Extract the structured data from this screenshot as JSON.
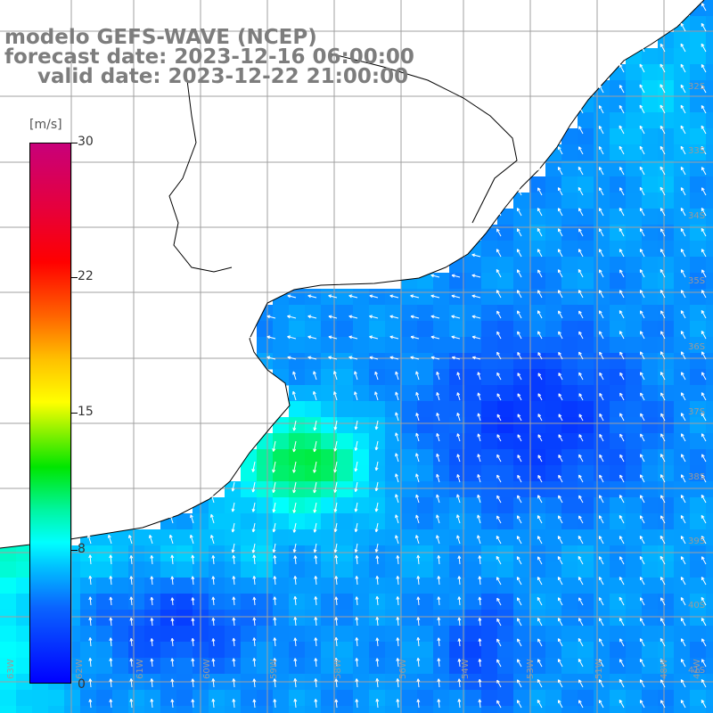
{
  "title": {
    "model": "modelo GEFS-WAVE (NCEP)",
    "forecast": "forecast date: 2023-12-16 06:00:00",
    "valid": "valid date: 2023-12-22 21:00:00"
  },
  "colorbar": {
    "unit": "[m/s]",
    "ticks": [
      "30",
      "22",
      "15",
      "8",
      "0"
    ],
    "tick_values": [
      30,
      22,
      15,
      8,
      0
    ],
    "range": [
      0,
      30
    ],
    "colors": [
      "#0000ff",
      "#00c8ff",
      "#00ffff",
      "#00e600",
      "#ffff00",
      "#ff6400",
      "#ff0000",
      "#c8007a"
    ]
  },
  "map": {
    "type": "wind speed and direction field",
    "ocean_color": "#1e78f0",
    "land_color": "#ffffff",
    "grid_color": "#a0a0a0",
    "coastline_color": "#000000",
    "arrow_color": "#ffffff",
    "lat_labels": [
      "32S",
      "33S",
      "34S",
      "35S",
      "36S",
      "37S",
      "38S",
      "39S",
      "40S",
      "41S"
    ],
    "lon_labels": [
      "63W",
      "62W",
      "61W",
      "60W",
      "59W",
      "58W",
      "56W",
      "54W",
      "53W",
      "51W",
      "48W",
      "45W"
    ]
  }
}
